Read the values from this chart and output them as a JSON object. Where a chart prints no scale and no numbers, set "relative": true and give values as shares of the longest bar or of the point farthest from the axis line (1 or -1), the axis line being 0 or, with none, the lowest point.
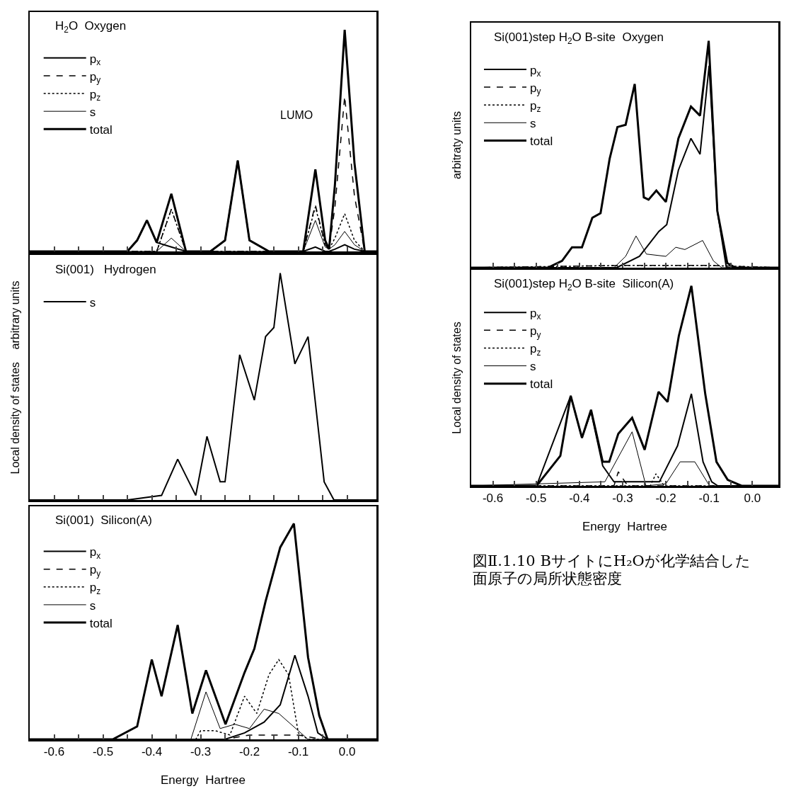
{
  "chart_data": [
    {
      "type": "line",
      "title": "H$_{2}$O  Oxygen",
      "relative": true,
      "xlim": [
        -0.65,
        0.06
      ],
      "tick_labels": false,
      "legend": "top left",
      "xticks": [
        -0.6,
        {
          "value": -0.55,
          "label": null
        },
        -0.5,
        {
          "value": -0.45,
          "label": null
        },
        -0.4,
        {
          "value": -0.35,
          "label": null
        },
        -0.3,
        {
          "value": -0.25,
          "label": null
        },
        -0.2,
        {
          "value": -0.15,
          "label": null
        },
        -0.1,
        {
          "value": -0.05,
          "label": null
        },
        0
      ],
      "annotations": [
        "LUMO"
      ],
      "series": [
        {
          "name": "p$_{x}$",
          "color": "#000000",
          "line_style": "solid",
          "x": [
            -0.65,
            -0.45,
            -0.43,
            -0.41,
            -0.39,
            -0.36,
            -0.33,
            -0.28,
            -0.25,
            -0.224,
            -0.2,
            -0.16,
            -0.09,
            -0.065,
            -0.045,
            -0.037,
            -0.025,
            -0.005,
            0.015,
            0.036,
            0.06
          ],
          "values": [
            0,
            0,
            0.05,
            0.14,
            0.04,
            0.02,
            0,
            0,
            0.05,
            0.41,
            0.05,
            0,
            0,
            0.02,
            0,
            0,
            0.01,
            0.03,
            0.01,
            0,
            0
          ]
        },
        {
          "name": "p$_{y}$",
          "color": "#000000",
          "line_style": "dashed",
          "x": [
            -0.65,
            -0.45,
            -0.43,
            -0.41,
            -0.39,
            -0.36,
            -0.33,
            -0.28,
            -0.25,
            -0.224,
            -0.2,
            -0.16,
            -0.09,
            -0.065,
            -0.045,
            -0.037,
            -0.025,
            -0.005,
            0.015,
            0.036,
            0.06
          ],
          "values": [
            0,
            0,
            0,
            0,
            0,
            0.19,
            0,
            0,
            0,
            0,
            0,
            0,
            0,
            0.21,
            0.03,
            0.01,
            0.2,
            0.7,
            0.25,
            0,
            0
          ]
        },
        {
          "name": "p$_{z}$",
          "color": "#000000",
          "line_style": "dotted",
          "x": [
            -0.65,
            -0.45,
            -0.43,
            -0.41,
            -0.39,
            -0.36,
            -0.33,
            -0.28,
            -0.25,
            -0.224,
            -0.2,
            -0.16,
            -0.09,
            -0.065,
            -0.045,
            -0.037,
            -0.025,
            -0.005,
            0.015,
            0.036,
            0.06
          ],
          "values": [
            0,
            0,
            0,
            0,
            0,
            0.19,
            0,
            0,
            0,
            0,
            0,
            0,
            0,
            0.2,
            0.03,
            0.01,
            0.06,
            0.17,
            0.05,
            0,
            0
          ]
        },
        {
          "name": "s",
          "color": "#000000",
          "line_style": "solid",
          "x": [
            -0.65,
            -0.45,
            -0.43,
            -0.41,
            -0.39,
            -0.36,
            -0.33,
            -0.28,
            -0.25,
            -0.224,
            -0.2,
            -0.16,
            -0.09,
            -0.065,
            -0.045,
            -0.037,
            -0.025,
            -0.005,
            0.015,
            0.036,
            0.06
          ],
          "values": [
            0,
            0,
            0,
            0,
            0,
            0.06,
            0,
            0,
            0,
            0,
            0,
            0,
            0,
            0.14,
            0.02,
            0.01,
            0.03,
            0.09,
            0.03,
            0,
            0
          ]
        },
        {
          "name": "total",
          "color": "#000000",
          "line_style": "solid",
          "x": [
            -0.65,
            -0.45,
            -0.43,
            -0.41,
            -0.39,
            -0.36,
            -0.33,
            -0.28,
            -0.25,
            -0.224,
            -0.2,
            -0.16,
            -0.09,
            -0.065,
            -0.045,
            -0.037,
            -0.025,
            -0.005,
            0.015,
            0.036,
            0.06
          ],
          "values": [
            0,
            0,
            0.05,
            0.14,
            0.04,
            0.26,
            0,
            0,
            0.05,
            0.41,
            0.05,
            0,
            0,
            0.37,
            0.05,
            0.01,
            0.3,
            1.0,
            0.4,
            0,
            0
          ]
        }
      ]
    },
    {
      "type": "line",
      "title": "Si(001)   Hydrogen",
      "ylabel": "Local density of states    arbitrary units",
      "relative": true,
      "xlim": [
        -0.65,
        0.06
      ],
      "tick_labels": false,
      "legend": "top left",
      "xticks": [
        -0.6,
        {
          "value": -0.55,
          "label": null
        },
        -0.5,
        {
          "value": -0.45,
          "label": null
        },
        -0.4,
        {
          "value": -0.35,
          "label": null
        },
        -0.3,
        {
          "value": -0.25,
          "label": null
        },
        -0.2,
        {
          "value": -0.15,
          "label": null
        },
        -0.1,
        {
          "value": -0.05,
          "label": null
        },
        0
      ],
      "series": [
        {
          "name": "s",
          "color": "#000000",
          "line_style": "solid",
          "x": [
            -0.65,
            -0.45,
            -0.38,
            -0.347,
            -0.31,
            -0.287,
            -0.26,
            -0.25,
            -0.22,
            -0.19,
            -0.167,
            -0.15,
            -0.137,
            -0.107,
            -0.08,
            -0.047,
            -0.027,
            0.06
          ],
          "values": [
            0,
            0,
            0.02,
            0.18,
            0.02,
            0.28,
            0.08,
            0.08,
            0.64,
            0.44,
            0.72,
            0.76,
            1.0,
            0.6,
            0.72,
            0.08,
            0,
            0
          ]
        }
      ]
    },
    {
      "type": "line",
      "title": "Si(001)  Silicon(A)",
      "xlabel": "Energy  Hartree",
      "relative": true,
      "xlim": [
        -0.65,
        0.06
      ],
      "legend": "top left",
      "xticks": [
        -0.6,
        {
          "value": -0.55,
          "label": null
        },
        -0.5,
        {
          "value": -0.45,
          "label": null
        },
        -0.4,
        {
          "value": -0.35,
          "label": null
        },
        -0.3,
        {
          "value": -0.25,
          "label": null
        },
        -0.2,
        {
          "value": -0.15,
          "label": null
        },
        -0.1,
        {
          "value": -0.05,
          "label": null
        },
        {
          "value": 0,
          "label": "0.0"
        }
      ],
      "series": [
        {
          "name": "p$_{x}$",
          "color": "#000000",
          "line_style": "solid",
          "x": [
            -0.65,
            -0.25,
            -0.21,
            -0.17,
            -0.137,
            -0.107,
            -0.08,
            -0.06,
            -0.04,
            0.06
          ],
          "values": [
            0,
            0,
            0.03,
            0.08,
            0.16,
            0.39,
            0.2,
            0.03,
            0,
            0
          ]
        },
        {
          "name": "p$_{y}$",
          "color": "#000000",
          "line_style": "dashed",
          "x": [
            -0.65,
            -0.25,
            -0.2,
            -0.15,
            -0.1,
            -0.05,
            0.06
          ],
          "values": [
            0,
            0,
            0.02,
            0.02,
            0.02,
            0,
            0
          ]
        },
        {
          "name": "p$_{z}$",
          "color": "#000000",
          "line_style": "dotted",
          "x": [
            -0.65,
            -0.31,
            -0.3,
            -0.27,
            -0.24,
            -0.21,
            -0.185,
            -0.16,
            -0.14,
            -0.12,
            -0.1,
            -0.08,
            0.06
          ],
          "values": [
            0,
            0,
            0.04,
            0.04,
            0.02,
            0.2,
            0.12,
            0.3,
            0.37,
            0.3,
            0.03,
            0,
            0
          ]
        },
        {
          "name": "s",
          "color": "#000000",
          "line_style": "solid",
          "x": [
            -0.65,
            -0.32,
            -0.289,
            -0.26,
            -0.23,
            -0.2,
            -0.17,
            -0.14,
            -0.1,
            -0.08,
            0.06
          ],
          "values": [
            0,
            0,
            0.22,
            0.05,
            0.07,
            0.05,
            0.14,
            0.12,
            0.04,
            0,
            0
          ]
        },
        {
          "name": "total",
          "color": "#000000",
          "line_style": "solid",
          "x": [
            -0.65,
            -0.48,
            -0.43,
            -0.4,
            -0.38,
            -0.347,
            -0.317,
            -0.289,
            -0.249,
            -0.21,
            -0.19,
            -0.167,
            -0.137,
            -0.109,
            -0.08,
            -0.057,
            -0.04,
            0.06
          ],
          "values": [
            0,
            0,
            0.06,
            0.37,
            0.2,
            0.53,
            0.12,
            0.32,
            0.07,
            0.31,
            0.42,
            0.64,
            0.89,
            1.0,
            0.38,
            0.11,
            0,
            0
          ]
        }
      ]
    },
    {
      "type": "line",
      "title": "Si(001)step H$_{2}$O B-site  Oxygen",
      "ylabel": "arbitraty units",
      "relative": true,
      "xlim": [
        -0.65,
        0.06
      ],
      "tick_labels": false,
      "legend": "top left",
      "xticks": [
        -0.6,
        {
          "value": -0.55,
          "label": null
        },
        -0.5,
        {
          "value": -0.45,
          "label": null
        },
        -0.4,
        {
          "value": -0.35,
          "label": null
        },
        -0.3,
        {
          "value": -0.25,
          "label": null
        },
        -0.2,
        {
          "value": -0.15,
          "label": null
        },
        -0.1,
        {
          "value": -0.05,
          "label": null
        },
        0
      ],
      "series": [
        {
          "name": "p$_{x}$",
          "color": "#000000",
          "line_style": "solid",
          "x": [
            -0.65,
            -0.314,
            -0.261,
            -0.216,
            -0.198,
            -0.171,
            -0.142,
            -0.121,
            -0.1,
            -0.081,
            -0.06,
            0.06
          ],
          "values": [
            0,
            0,
            0.05,
            0.16,
            0.19,
            0.43,
            0.57,
            0.5,
            0.89,
            0.25,
            0,
            0
          ]
        },
        {
          "name": "p$_{y}$",
          "color": "#000000",
          "line_style": "dashed",
          "x": [
            -0.65,
            -0.3,
            -0.2,
            -0.1,
            0.06
          ],
          "values": [
            0,
            0.01,
            0.01,
            0.01,
            0
          ]
        },
        {
          "name": "p$_{z}$",
          "color": "#000000",
          "line_style": "dotted",
          "x": [
            -0.65,
            -0.3,
            -0.2,
            -0.1,
            0.06
          ],
          "values": [
            0,
            0.01,
            0.01,
            0.01,
            0
          ]
        },
        {
          "name": "s",
          "color": "#000000",
          "line_style": "solid",
          "x": [
            -0.65,
            -0.32,
            -0.293,
            -0.269,
            -0.245,
            -0.2,
            -0.177,
            -0.156,
            -0.115,
            -0.09,
            -0.071,
            0.06
          ],
          "values": [
            0,
            0,
            0.05,
            0.14,
            0.06,
            0.05,
            0.09,
            0.08,
            0.12,
            0.03,
            0,
            0
          ]
        },
        {
          "name": "total",
          "color": "#000000",
          "line_style": "solid",
          "x": [
            -0.65,
            -0.473,
            -0.44,
            -0.417,
            -0.394,
            -0.37,
            -0.351,
            -0.33,
            -0.312,
            -0.293,
            -0.272,
            -0.251,
            -0.24,
            -0.222,
            -0.2,
            -0.171,
            -0.142,
            -0.121,
            -0.101,
            -0.081,
            -0.058,
            -0.039,
            0.06
          ],
          "values": [
            0,
            0,
            0.03,
            0.09,
            0.09,
            0.22,
            0.24,
            0.48,
            0.62,
            0.63,
            0.81,
            0.31,
            0.3,
            0.34,
            0.29,
            0.57,
            0.71,
            0.67,
            1.0,
            0.25,
            0.02,
            0,
            0
          ]
        }
      ]
    },
    {
      "type": "line",
      "title": "Si(001)step H$_{2}$O B-site  Silicon(A)",
      "ylabel": "Local density of states",
      "xlabel": "Energy  Hartree",
      "relative": true,
      "xlim": [
        -0.65,
        0.06
      ],
      "legend": "top left",
      "xticks": [
        -0.6,
        {
          "value": -0.55,
          "label": null
        },
        -0.5,
        {
          "value": -0.45,
          "label": null
        },
        -0.4,
        {
          "value": -0.35,
          "label": null
        },
        -0.3,
        {
          "value": -0.25,
          "label": null
        },
        -0.2,
        {
          "value": -0.15,
          "label": null
        },
        -0.1,
        {
          "value": -0.05,
          "label": null
        },
        {
          "value": 0,
          "label": "0.0"
        }
      ],
      "annotations": [
        "図Ⅱ.1.10 BサイトにH₂Oが化学結合した",
        "面原子の局所状態密度"
      ],
      "series": [
        {
          "name": "p$_{x}$",
          "color": "#000000",
          "line_style": "solid",
          "x": [
            -0.65,
            -0.499,
            -0.42,
            -0.394,
            -0.373,
            -0.346,
            -0.32,
            -0.215,
            -0.173,
            -0.141,
            -0.114,
            -0.094,
            -0.08,
            0.06
          ],
          "values": [
            0,
            0,
            0.45,
            0.24,
            0.37,
            0.1,
            0.02,
            0.02,
            0.2,
            0.46,
            0.12,
            0.02,
            0,
            0
          ]
        },
        {
          "name": "p$_{y}$",
          "color": "#000000",
          "line_style": "dashed",
          "x": [
            -0.65,
            -0.32,
            -0.31,
            -0.288,
            -0.26,
            0.06
          ],
          "values": [
            0,
            0,
            0.07,
            0,
            0,
            0
          ]
        },
        {
          "name": "p$_{z}$",
          "color": "#000000",
          "line_style": "dotted",
          "x": [
            -0.65,
            -0.236,
            -0.223,
            -0.204,
            -0.18,
            0.06
          ],
          "values": [
            0,
            0,
            0.06,
            0,
            0,
            0
          ]
        },
        {
          "name": "s",
          "color": "#000000",
          "line_style": "solid",
          "x": [
            -0.65,
            -0.341,
            -0.278,
            -0.246,
            -0.2,
            -0.167,
            -0.133,
            -0.099,
            0.06
          ],
          "values": [
            0,
            0.02,
            0.27,
            0,
            0.01,
            0.12,
            0.12,
            0,
            0
          ]
        },
        {
          "name": "total",
          "color": "#000000",
          "line_style": "solid",
          "x": [
            -0.65,
            -0.499,
            -0.444,
            -0.42,
            -0.394,
            -0.373,
            -0.346,
            -0.331,
            -0.31,
            -0.278,
            -0.249,
            -0.217,
            -0.196,
            -0.17,
            -0.141,
            -0.109,
            -0.083,
            -0.057,
            -0.025,
            0.06
          ],
          "values": [
            0,
            0,
            0.15,
            0.45,
            0.24,
            0.38,
            0.12,
            0.12,
            0.26,
            0.34,
            0.18,
            0.47,
            0.42,
            0.75,
            1.0,
            0.46,
            0.12,
            0.03,
            0,
            0
          ]
        }
      ]
    }
  ]
}
